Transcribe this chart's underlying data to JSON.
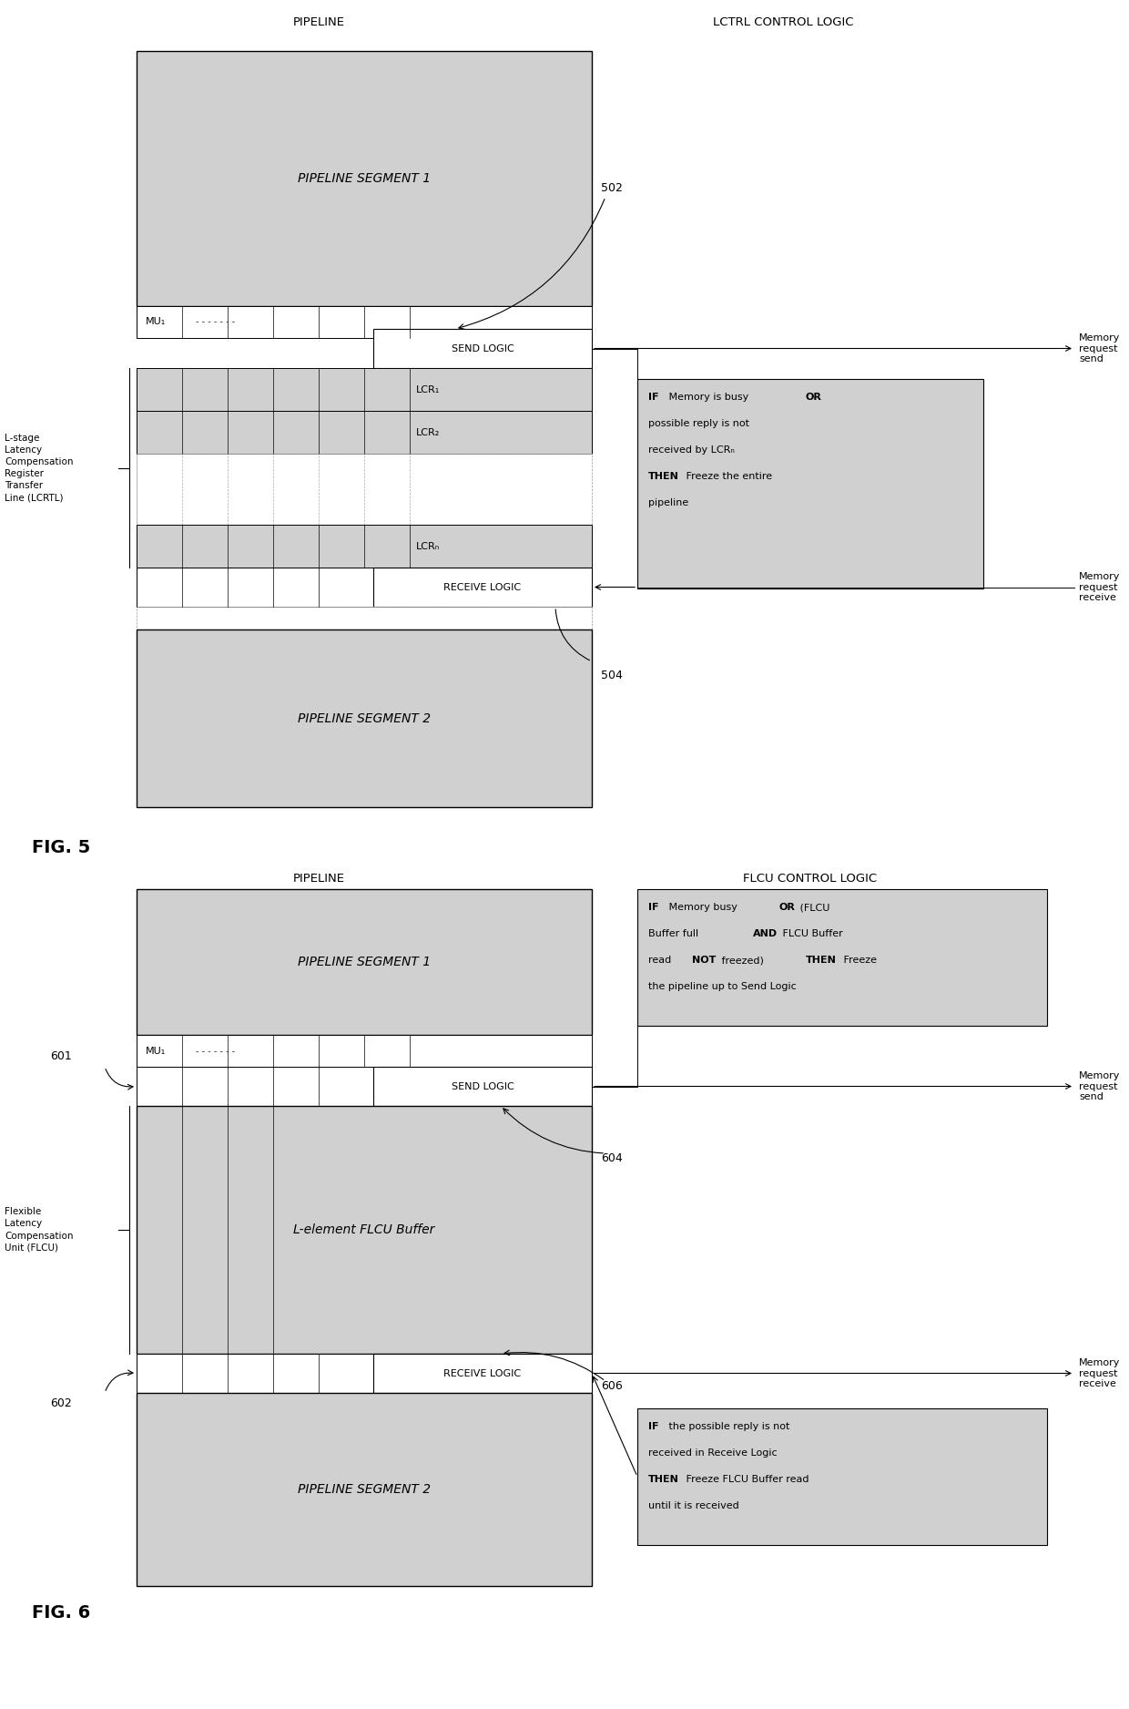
{
  "fig_width": 12.4,
  "fig_height": 18.76,
  "bg_color": "#ffffff",
  "shading_color": "#d0d0d0",
  "box_edge_color": "#000000",
  "fig5": {
    "title_pipeline": "PIPELINE",
    "title_lctrl": "LCTRL CONTROL LOGIC",
    "pipeline_seg1_label": "PIPELINE SEGMENT 1",
    "pipeline_seg2_label": "PIPELINE SEGMENT 2",
    "mu_label": "MU₁",
    "send_logic_label": "SEND LOGIC",
    "receive_logic_label": "RECEIVE LOGIC",
    "lcr1_label": "LCR₁",
    "lcr2_label": "LCR₂",
    "lcrn_label": "LCRₙ",
    "left_label": "L-stage\nLatency\nCompensation\nRegister\nTransfer\nLine (LCRTL)",
    "label_502": "502",
    "label_504": "504",
    "mem_req_send": "Memory\nrequest\nsend",
    "mem_req_receive": "Memory\nrequest\nreceive",
    "ctrl_lines": [
      [
        "IF",
        " Memory is busy ",
        "OR"
      ],
      [
        "possible reply is not"
      ],
      [
        "received by LCRₙ"
      ],
      [
        "THEN",
        " Freeze the entire"
      ],
      [
        "pipeline"
      ]
    ],
    "ctrl_bold": [
      [
        true,
        false,
        true
      ],
      [
        false
      ],
      [
        false
      ],
      [
        true,
        false
      ],
      [
        false
      ]
    ]
  },
  "fig6": {
    "title_pipeline": "PIPELINE",
    "title_flcu": "FLCU CONTROL LOGIC",
    "pipeline_seg1_label": "PIPELINE SEGMENT 1",
    "pipeline_seg2_label": "PIPELINE SEGMENT 2",
    "mu_label": "MU₁",
    "send_logic_label": "SEND LOGIC",
    "receive_logic_label": "RECEIVE LOGIC",
    "buffer_label": "L-element FLCU Buffer",
    "label_601": "601",
    "label_602": "602",
    "label_604": "604",
    "label_606": "606",
    "left_label": "Flexible\nLatency\nCompensation\nUnit (FLCU)",
    "mem_req_send": "Memory\nrequest\nsend",
    "mem_req_receive": "Memory\nrequest\nreceive",
    "top_ctrl_lines": [
      [
        "IF",
        " Memory busy ",
        "OR",
        " (FLCU"
      ],
      [
        "Buffer full ",
        "AND",
        " FLCU Buffer"
      ],
      [
        "read ",
        "NOT",
        " freezed) ",
        "THEN",
        " Freeze"
      ],
      [
        "the pipeline up to Send Logic"
      ]
    ],
    "top_ctrl_bold": [
      [
        true,
        false,
        true,
        false
      ],
      [
        false,
        true,
        false
      ],
      [
        false,
        true,
        false,
        true,
        false
      ],
      [
        false
      ]
    ],
    "bot_ctrl_lines": [
      [
        "IF",
        " the possible reply is not"
      ],
      [
        "received in Receive Logic"
      ],
      [
        "THEN",
        " Freeze FLCU Buffer read"
      ],
      [
        "until it is received"
      ]
    ],
    "bot_ctrl_bold": [
      [
        true,
        false
      ],
      [
        false
      ],
      [
        true,
        false
      ],
      [
        false
      ]
    ]
  }
}
